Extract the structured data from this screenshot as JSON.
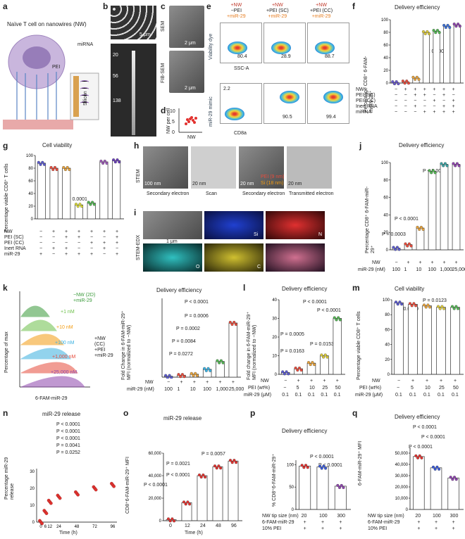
{
  "panels": {
    "a": {
      "letter": "a",
      "title": "Naïve T cell on nanowires (NW)",
      "pei": "PEI",
      "mirna": "miRNA",
      "silicon": "Silicon"
    },
    "b": {
      "letter": "b",
      "scale": "5 μm",
      "w1": "20",
      "w2": "56",
      "w3": "138",
      "unit": "nm"
    },
    "c": {
      "letter": "c",
      "sem": "SEM",
      "fib": "FIB-SEM",
      "scale1": "2 μm",
      "scale2": "2 μm"
    },
    "d": {
      "letter": "d",
      "ylabel": "NW per cell",
      "xlabel": "NW",
      "ticks": [
        "0",
        "5",
        "10"
      ]
    },
    "e": {
      "letter": "e",
      "col1": [
        "+NW",
        "−PEI",
        "+miR-29"
      ],
      "col2": [
        "+NW",
        "+PEI (SC)",
        "+miR-29"
      ],
      "col3": [
        "+NW",
        "+PEI (CC)",
        "+miR-29"
      ],
      "ylabel_top": "Viability dye",
      "ylabel_bottom": "miR-29 mimic",
      "xlabel_top": "SSC-A",
      "xlabel_bottom": "CD8a",
      "top_vals": [
        "80.4",
        "28.9",
        "88.7"
      ],
      "bottom_vals": [
        "2.2",
        "90.5",
        "99.4"
      ]
    },
    "f": {
      "letter": "f",
      "title": "Delivery efficiency",
      "ylabel": "Percentage CD8⁺ 6-FAM-miRN-29⁺",
      "pval": "P < 0.0001",
      "rows": [
        "NW",
        "PEI (SC)",
        "PEI (CC)",
        "Inert RNA",
        "miRNA"
      ],
      "yticks": [
        "0",
        "20",
        "40",
        "60",
        "80",
        "100"
      ]
    },
    "g": {
      "letter": "g",
      "title": "Cell viability",
      "ylabel": "Percentage viable CD8⁺ T cells",
      "pval": "P < 0.0001",
      "rows": [
        "NW",
        "PEI (SC)",
        "PEI (CC)",
        "Inert RNA",
        "miR-29"
      ],
      "yticks": [
        "0",
        "20",
        "40",
        "60",
        "80",
        "100"
      ]
    },
    "h": {
      "letter": "h",
      "label": "STEM",
      "captions": [
        "Secondary electron",
        "Scan",
        "Secondary electron",
        "Transmitted electron"
      ],
      "scales": [
        "100 nm",
        "20 nm",
        "20 nm",
        "20 nm"
      ],
      "legend": [
        "PEI (9 nm)",
        "Si (18 nm)"
      ]
    },
    "i": {
      "letter": "i",
      "label": "STEM-EDX",
      "scale": "1 μm",
      "elements": [
        "Si",
        "N",
        "O",
        "C"
      ]
    },
    "j": {
      "letter": "j",
      "title": "Delivery efficiency",
      "ylabel": "Percentage CD8⁺ 6-FAM-miR-29⁺",
      "pvals": [
        "P < 0.0001",
        "P < 0.0001",
        "P = 0.0003"
      ],
      "xrow1": "NW",
      "xrow2": "miR-29 (nM)",
      "xvals": [
        "100",
        "1",
        "10",
        "100",
        "1,000",
        "25,000"
      ],
      "yticks": [
        "0",
        "20",
        "40",
        "60",
        "80",
        "100"
      ]
    },
    "k": {
      "letter": "k",
      "ylabel": "Percentage of max",
      "xlabel": "6-FAM-miR-29",
      "legend": [
        "−NW (2D)",
        "+miR-29",
        "+1 nM",
        "+10 nM",
        "+100 nM",
        "+1,000 nM",
        "+25,000 nM"
      ],
      "side": [
        "+NW",
        "(CC)",
        "+PEI",
        "+miR-29"
      ],
      "title": "Delivery efficiency",
      "bar_ylabel": "Fold Change in 6-FAM-miR-29⁺ MFI (normalized to −NW)",
      "pvals": [
        "P < 0.0001",
        "P = 0.0006",
        "P = 0.0002",
        "P = 0.0084",
        "P = 0.0272"
      ],
      "xrow1": "NW",
      "xrow2": "miR-29 (nM)",
      "xvals": [
        "100",
        "1",
        "10",
        "100",
        "1,000",
        "25,000"
      ]
    },
    "l": {
      "letter": "l",
      "title": "Delivery efficiency",
      "ylabel": "Fold change in 6-FAM-miR-29⁺ MFI (normalized to −NW)",
      "pvals": [
        "P < 0.0001",
        "P < 0.0001",
        "P = 0.0005",
        "P = 0.0163",
        "P = 0.0153"
      ],
      "xrow1": "NW",
      "xrow2": "PEI (wt%)",
      "xrow3": "miR-29 (μM)",
      "xvals": [
        "−",
        "5",
        "10",
        "25",
        "50"
      ],
      "xvals3": [
        "0.1",
        "0.1",
        "0.1",
        "0.1",
        "0.1"
      ]
    },
    "m": {
      "letter": "m",
      "title": "Cell viability",
      "ylabel": "Percentage viable CD8⁺ T cells",
      "pvals": [
        "P = 0.0123",
        "P = 0.0230"
      ],
      "xrow1": "NW",
      "xrow2": "PEI (wt%)",
      "xrow3": "miR-29 (μM)",
      "xvals": [
        "−",
        "5",
        "10",
        "25",
        "50"
      ],
      "xvals3": [
        "0.1",
        "0.1",
        "0.1",
        "0.1",
        "0.1"
      ]
    },
    "n": {
      "letter": "n",
      "title": "miR-29 release",
      "ylabel": "Percentage miR-29 release",
      "xlabel": "Time (h)",
      "pvals": [
        "P < 0.0001",
        "P < 0.0001",
        "P < 0.0001",
        "P = 0.0041",
        "P = 0.0252"
      ],
      "xticks": [
        "0",
        "6",
        "12",
        "24",
        "48",
        "72",
        "96"
      ],
      "yticks": [
        "0",
        "10",
        "20",
        "30"
      ]
    },
    "o": {
      "letter": "o",
      "title": "miR-29 release",
      "ylabel": "CD8⁺6-FAM-miR-29⁺ MFI",
      "xlabel": "Time (h)",
      "pvals": [
        "P < 0.0001",
        "P = 0.0021",
        "P = 0.0057"
      ],
      "xticks": [
        "0",
        "12",
        "24",
        "48",
        "96"
      ],
      "yticks": [
        "0",
        "20,000",
        "40,000",
        "60,000"
      ]
    },
    "p": {
      "letter": "p",
      "title": "Delivery efficiency",
      "ylabel": "% CD8⁺6-FAM-miR-29⁺",
      "pvals": [
        "P < 0.0001",
        "P < 0.0001"
      ],
      "rows": [
        "NW tip size (nm)",
        "6-FAM-miR-29",
        "10% PEI"
      ],
      "xvals": [
        "20",
        "100",
        "300"
      ],
      "yticks": [
        "0",
        "50",
        "100"
      ]
    },
    "q": {
      "letter": "q",
      "title": "Delivery efficiency",
      "ylabel": "6-FAM-miR-29⁺ MFI",
      "pvals": [
        "P < 0.0001",
        "P < 0.0001",
        "P < 0.0001"
      ],
      "rows": [
        "NW tip size (nm)",
        "6-FAM-miR-29",
        "10% PEI"
      ],
      "xvals": [
        "20",
        "100",
        "300"
      ],
      "yticks": [
        "0",
        "10,000",
        "20,000",
        "30,000",
        "40,000",
        "50,000"
      ]
    }
  },
  "chart_data": [
    {
      "type": "scatter",
      "panel": "d",
      "ylabel": "NW per cell",
      "categories": [
        "NW"
      ],
      "values": [
        4.5
      ]
    },
    {
      "type": "bar",
      "panel": "f",
      "title": "Delivery efficiency",
      "values": [
        1,
        2,
        8,
        80,
        82,
        90,
        92
      ],
      "ylim": [
        0,
        100
      ]
    },
    {
      "type": "bar",
      "panel": "g",
      "title": "Cell viability",
      "values": [
        88,
        80,
        80,
        22,
        25,
        90,
        92
      ],
      "ylim": [
        0,
        100
      ]
    },
    {
      "type": "bar",
      "panel": "j",
      "title": "Delivery efficiency",
      "categories": [
        "100",
        "1",
        "10",
        "100",
        "1,000",
        "25,000"
      ],
      "values": [
        2,
        6,
        25,
        90,
        98,
        98
      ],
      "ylim": [
        0,
        100
      ]
    },
    {
      "type": "bar",
      "panel": "k",
      "title": "Delivery efficiency",
      "categories": [
        "100",
        "1",
        "10",
        "100",
        "1,000",
        "25,000"
      ],
      "values": [
        1,
        2,
        3,
        8,
        16,
        55
      ],
      "ylim": [
        0,
        80
      ]
    },
    {
      "type": "bar",
      "panel": "l",
      "title": "Delivery efficiency",
      "categories": [
        "−",
        "5",
        "10",
        "25",
        "50"
      ],
      "values": [
        1,
        3,
        6,
        10,
        30
      ],
      "ylim": [
        0,
        40
      ]
    },
    {
      "type": "bar",
      "panel": "m",
      "title": "Cell viability",
      "categories": [
        "−",
        "5",
        "10",
        "25",
        "50"
      ],
      "values": [
        96,
        94,
        92,
        90,
        90
      ],
      "ylim": [
        0,
        100
      ]
    },
    {
      "type": "scatter",
      "panel": "n",
      "title": "miR-29 release",
      "x": [
        0,
        6,
        12,
        24,
        48,
        72,
        96
      ],
      "values": [
        0,
        6,
        12,
        15,
        17,
        20,
        22
      ],
      "ylim": [
        0,
        30
      ]
    },
    {
      "type": "bar",
      "panel": "o",
      "title": "miR-29 release",
      "categories": [
        "0",
        "12",
        "24",
        "48",
        "96"
      ],
      "values": [
        1000,
        16000,
        40000,
        48000,
        53000
      ],
      "ylim": [
        0,
        60000
      ]
    },
    {
      "type": "bar",
      "panel": "p",
      "title": "Delivery efficiency",
      "categories": [
        "20",
        "100",
        "300"
      ],
      "values": [
        97,
        95,
        52
      ],
      "ylim": [
        0,
        110
      ]
    },
    {
      "type": "bar",
      "panel": "q",
      "title": "Delivery efficiency",
      "categories": [
        "20",
        "100",
        "300"
      ],
      "values": [
        47000,
        37000,
        28000
      ],
      "ylim": [
        0,
        55000
      ]
    }
  ]
}
